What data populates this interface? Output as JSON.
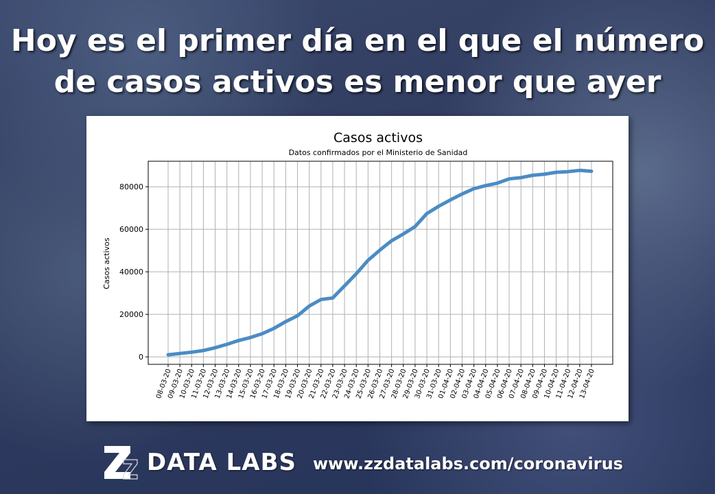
{
  "headline": {
    "line1": "Hoy es el primer día en el que el número",
    "line2": "de casos activos es menor que ayer"
  },
  "chart_data": {
    "type": "line",
    "title": "Casos activos",
    "subtitle": "Datos confirmados por el Ministerio de Sanidad",
    "xlabel": "",
    "ylabel": "Casos activos",
    "ylim": [
      -3500,
      92000
    ],
    "yticks": [
      0,
      20000,
      40000,
      60000,
      80000
    ],
    "grid": true,
    "line_color": "#4a8cc4",
    "x": [
      "08-03-20",
      "09-03-20",
      "10-03-20",
      "11-03-20",
      "12-03-20",
      "13-03-20",
      "14-03-20",
      "15-03-20",
      "16-03-20",
      "17-03-20",
      "18-03-20",
      "19-03-20",
      "20-03-20",
      "21-03-20",
      "22-03-20",
      "23-03-20",
      "24-03-20",
      "25-03-20",
      "26-03-20",
      "27-03-20",
      "28-03-20",
      "29-03-20",
      "30-03-20",
      "31-03-20",
      "01-04-20",
      "02-04-20",
      "03-04-20",
      "04-04-20",
      "05-04-20",
      "06-04-20",
      "07-04-20",
      "08-04-20",
      "09-04-20",
      "10-04-20",
      "11-04-20",
      "12-04-20",
      "13-04-20"
    ],
    "values": [
      1000,
      1600,
      2200,
      3000,
      4300,
      5900,
      7700,
      9100,
      10900,
      13400,
      16600,
      19300,
      23900,
      27000,
      27700,
      33400,
      39100,
      45400,
      50200,
      54600,
      57800,
      61300,
      67400,
      70800,
      73800,
      76600,
      79100,
      80500,
      81700,
      83700,
      84300,
      85400,
      85900,
      86800,
      87100,
      87700,
      87300
    ]
  },
  "footer": {
    "brand": "DATA LABS",
    "url": "www.zzdatalabs.com/coronavirus",
    "logo_icon": "zz-logo-icon"
  }
}
